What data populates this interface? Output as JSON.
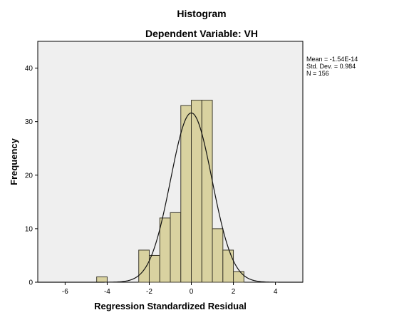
{
  "chart_data": {
    "type": "bar",
    "title": "Histogram",
    "subtitle": "Dependent Variable: VH",
    "xlabel": "Regression Standardized Residual",
    "ylabel": "Frequency",
    "xlim": [
      -7.3,
      5.3
    ],
    "ylim": [
      0,
      45
    ],
    "x_ticks": [
      -6,
      -4,
      -2,
      0,
      2,
      4
    ],
    "y_ticks": [
      0,
      10,
      20,
      30,
      40
    ],
    "bin_width": 0.5,
    "bins": [
      {
        "x_start": -4.5,
        "x_end": -4.0,
        "value": 1
      },
      {
        "x_start": -2.5,
        "x_end": -2.0,
        "value": 6
      },
      {
        "x_start": -2.0,
        "x_end": -1.5,
        "value": 5
      },
      {
        "x_start": -1.5,
        "x_end": -1.0,
        "value": 12
      },
      {
        "x_start": -1.0,
        "x_end": -0.5,
        "value": 13
      },
      {
        "x_start": -0.5,
        "x_end": 0.0,
        "value": 33
      },
      {
        "x_start": 0.0,
        "x_end": 0.5,
        "value": 34
      },
      {
        "x_start": 0.5,
        "x_end": 1.0,
        "value": 34
      },
      {
        "x_start": 1.0,
        "x_end": 1.5,
        "value": 10
      },
      {
        "x_start": 1.5,
        "x_end": 2.0,
        "value": 6
      },
      {
        "x_start": 2.0,
        "x_end": 2.5,
        "value": 2
      }
    ],
    "normal_curve": {
      "mean": 0,
      "std_dev": 0.984,
      "n": 156
    },
    "stats": {
      "mean_label": "Mean = -1.54E-14",
      "std_label": "Std. Dev. = 0.984",
      "n_label": "N = 156"
    },
    "grid": false,
    "colors": {
      "bar_fill": "#d9d2a0",
      "bar_stroke": "#3d3a2c",
      "plot_bg": "#efefef"
    }
  }
}
